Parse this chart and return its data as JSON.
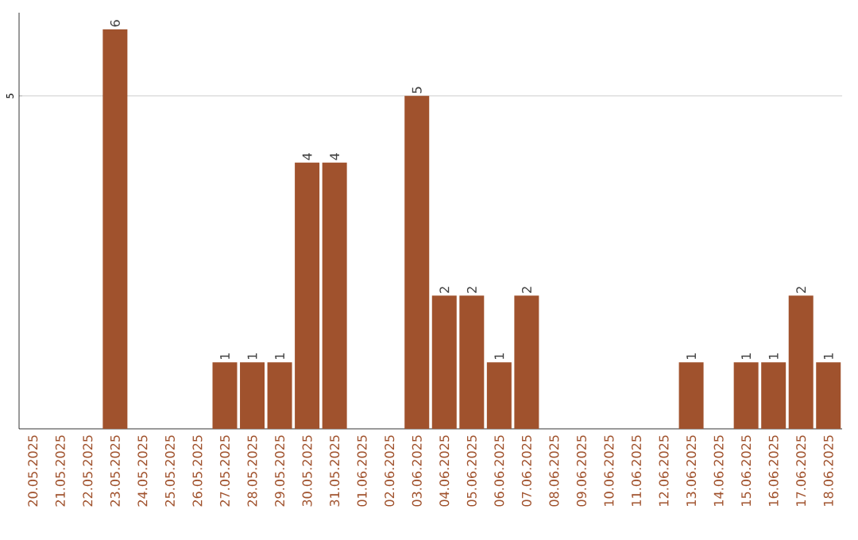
{
  "chart_data": {
    "type": "bar",
    "categories": [
      "20.05.2025",
      "21.05.2025",
      "22.05.2025",
      "23.05.2025",
      "24.05.2025",
      "25.05.2025",
      "26.05.2025",
      "27.05.2025",
      "28.05.2025",
      "29.05.2025",
      "30.05.2025",
      "31.05.2025",
      "01.06.2025",
      "02.06.2025",
      "03.06.2025",
      "04.06.2025",
      "05.06.2025",
      "06.06.2025",
      "07.06.2025",
      "08.06.2025",
      "09.06.2025",
      "10.06.2025",
      "11.06.2025",
      "12.06.2025",
      "13.06.2025",
      "14.06.2025",
      "15.06.2025",
      "16.06.2025",
      "17.06.2025",
      "18.06.2025"
    ],
    "values": [
      0,
      0,
      0,
      6,
      0,
      0,
      0,
      1,
      1,
      1,
      4,
      4,
      0,
      0,
      5,
      2,
      2,
      1,
      2,
      0,
      0,
      0,
      0,
      0,
      1,
      0,
      1,
      1,
      2,
      1
    ],
    "value_labels": [
      null,
      null,
      null,
      "6",
      null,
      null,
      null,
      "1",
      "1",
      "1",
      "4",
      "4",
      null,
      null,
      "5",
      "2",
      "2",
      "1",
      "2",
      null,
      null,
      null,
      null,
      null,
      "1",
      null,
      "1",
      "1",
      "2",
      "1"
    ],
    "color": "#a0522d",
    "ylim": [
      0,
      6.25
    ],
    "yticks": [
      5
    ],
    "grid": "y"
  }
}
